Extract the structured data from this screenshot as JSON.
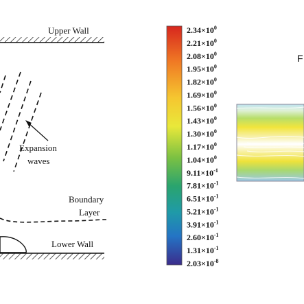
{
  "left_panel": {
    "upper_wall": "Upper Wall",
    "lower_wall": "Lower Wall",
    "expansion_label": [
      "Expansion",
      "waves"
    ],
    "boundary_label": [
      "Boundary",
      "Layer"
    ]
  },
  "colorbar": {
    "labels": [
      {
        "mantissa": "2.34×10",
        "exp": "0"
      },
      {
        "mantissa": "2.21×10",
        "exp": "0"
      },
      {
        "mantissa": "2.08×10",
        "exp": "0"
      },
      {
        "mantissa": "1.95×10",
        "exp": "0"
      },
      {
        "mantissa": "1.82×10",
        "exp": "0"
      },
      {
        "mantissa": "1.69×10",
        "exp": "0"
      },
      {
        "mantissa": "1.56×10",
        "exp": "0"
      },
      {
        "mantissa": "1.43×10",
        "exp": "0"
      },
      {
        "mantissa": "1.30×10",
        "exp": "0"
      },
      {
        "mantissa": "1.17×10",
        "exp": "0"
      },
      {
        "mantissa": "1.04×10",
        "exp": "0"
      },
      {
        "mantissa": "9.11×10",
        "exp": "-1"
      },
      {
        "mantissa": "7.81×10",
        "exp": "-1"
      },
      {
        "mantissa": "6.51×10",
        "exp": "-1"
      },
      {
        "mantissa": "5.21×10",
        "exp": "-1"
      },
      {
        "mantissa": "3.91×10",
        "exp": "-1"
      },
      {
        "mantissa": "2.60×10",
        "exp": "-1"
      },
      {
        "mantissa": "1.31×10",
        "exp": "-1"
      },
      {
        "mantissa": "2.03×10",
        "exp": "-8"
      }
    ]
  },
  "right_panel": {
    "partial_title": "F"
  }
}
